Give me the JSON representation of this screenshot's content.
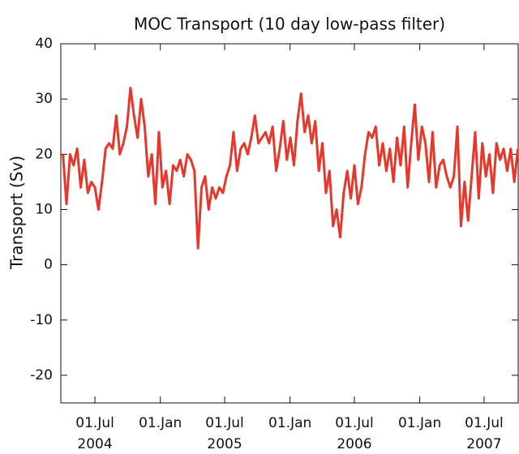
{
  "chart_data": {
    "type": "line",
    "title": "MOC Transport (10 day low-pass filter)",
    "y_label": "Transport (Sv)",
    "xlim": [
      "2004-03-27",
      "2007-10-05"
    ],
    "xticks": [
      {
        "value": "2004-07-01",
        "label": "01.Jul",
        "sublabel": "2004"
      },
      {
        "value": "2005-01-01",
        "label": "01.Jan"
      },
      {
        "value": "2005-07-01",
        "label": "01.Jul",
        "sublabel": "2005"
      },
      {
        "value": "2006-01-01",
        "label": "01.Jan"
      },
      {
        "value": "2006-07-01",
        "label": "01.Jul",
        "sublabel": "2006"
      },
      {
        "value": "2007-01-01",
        "label": "01.Jan"
      },
      {
        "value": "2007-07-01",
        "label": "01.Jul",
        "sublabel": "2007"
      }
    ],
    "ylim": [
      -25,
      40
    ],
    "yticks": [
      -20,
      -10,
      0,
      10,
      20,
      30,
      40
    ],
    "x": [
      "2004-04-02",
      "2004-04-12",
      "2004-04-22",
      "2004-05-02",
      "2004-05-12",
      "2004-05-22",
      "2004-06-01",
      "2004-06-11",
      "2004-06-21",
      "2004-07-01",
      "2004-07-11",
      "2004-07-21",
      "2004-07-31",
      "2004-08-10",
      "2004-08-20",
      "2004-08-30",
      "2004-09-09",
      "2004-09-19",
      "2004-09-29",
      "2004-10-09",
      "2004-10-19",
      "2004-10-29",
      "2004-11-08",
      "2004-11-18",
      "2004-11-28",
      "2004-12-08",
      "2004-12-18",
      "2004-12-28",
      "2005-01-07",
      "2005-01-17",
      "2005-01-27",
      "2005-02-06",
      "2005-02-16",
      "2005-02-26",
      "2005-03-08",
      "2005-03-18",
      "2005-03-28",
      "2005-04-07",
      "2005-04-17",
      "2005-04-27",
      "2005-05-07",
      "2005-05-17",
      "2005-05-27",
      "2005-06-06",
      "2005-06-16",
      "2005-06-26",
      "2005-07-06",
      "2005-07-16",
      "2005-07-26",
      "2005-08-05",
      "2005-08-15",
      "2005-08-25",
      "2005-09-04",
      "2005-09-14",
      "2005-09-24",
      "2005-10-04",
      "2005-10-14",
      "2005-10-24",
      "2005-11-03",
      "2005-11-13",
      "2005-11-23",
      "2005-12-03",
      "2005-12-13",
      "2005-12-23",
      "2006-01-02",
      "2006-01-12",
      "2006-01-22",
      "2006-02-01",
      "2006-02-11",
      "2006-02-21",
      "2006-03-03",
      "2006-03-13",
      "2006-03-23",
      "2006-04-02",
      "2006-04-12",
      "2006-04-22",
      "2006-05-02",
      "2006-05-12",
      "2006-05-22",
      "2006-06-01",
      "2006-06-11",
      "2006-06-21",
      "2006-07-01",
      "2006-07-11",
      "2006-07-21",
      "2006-07-31",
      "2006-08-10",
      "2006-08-20",
      "2006-08-30",
      "2006-09-09",
      "2006-09-19",
      "2006-09-29",
      "2006-10-09",
      "2006-10-19",
      "2006-10-29",
      "2006-11-08",
      "2006-11-18",
      "2006-11-28",
      "2006-12-08",
      "2006-12-18",
      "2006-12-28",
      "2007-01-07",
      "2007-01-17",
      "2007-01-27",
      "2007-02-06",
      "2007-02-16",
      "2007-02-26",
      "2007-03-08",
      "2007-03-18",
      "2007-03-28",
      "2007-04-07",
      "2007-04-17",
      "2007-04-27",
      "2007-05-07",
      "2007-05-17",
      "2007-05-27",
      "2007-06-06",
      "2007-06-16",
      "2007-06-26",
      "2007-07-06",
      "2007-07-16",
      "2007-07-26",
      "2007-08-05",
      "2007-08-15",
      "2007-08-25",
      "2007-09-04",
      "2007-09-14",
      "2007-09-24",
      "2007-10-04"
    ],
    "series": [
      {
        "name": "MOC Transport",
        "color": "#e8372a",
        "values": [
          20,
          11,
          20,
          18,
          21,
          14,
          19,
          13,
          15,
          14,
          10,
          15,
          21,
          22,
          21,
          27,
          20,
          22,
          25,
          32,
          27,
          23,
          30,
          25,
          16,
          20,
          11,
          24,
          14,
          17,
          11,
          18,
          17,
          19,
          16,
          20,
          19,
          17,
          3,
          14,
          16,
          10,
          14,
          12,
          14,
          13,
          16,
          18,
          24,
          17,
          21,
          22,
          20,
          23,
          27,
          22,
          23,
          24,
          22,
          25,
          17,
          21,
          26,
          19,
          23,
          18,
          26,
          31,
          24,
          27,
          22,
          26,
          17,
          22,
          13,
          17,
          7,
          10,
          5,
          13,
          17,
          12,
          18,
          11,
          14,
          20,
          24,
          23,
          25,
          18,
          22,
          17,
          21,
          15,
          23,
          18,
          25,
          14,
          22,
          29,
          19,
          25,
          22,
          15,
          24,
          14,
          18,
          19,
          16,
          14,
          16,
          25,
          7,
          15,
          8,
          16,
          24,
          12,
          22,
          16,
          20,
          13,
          22,
          19,
          21,
          17,
          21,
          15,
          21
        ]
      }
    ]
  }
}
